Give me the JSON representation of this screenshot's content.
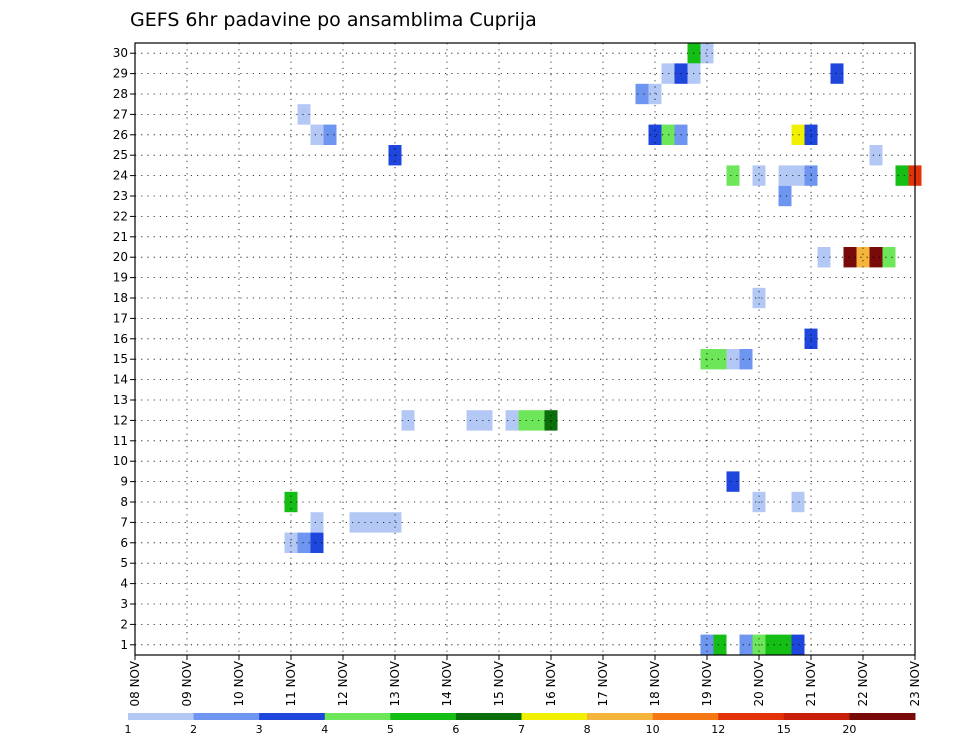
{
  "chart_data": {
    "type": "heatmap",
    "title": "GEFS 6hr padavine po ansamblima Cuprija",
    "xlabel": "",
    "ylabel": "",
    "x_tick_labels": [
      "08 NOV",
      "09 NOV",
      "10 NOV",
      "11 NOV",
      "12 NOV",
      "13 NOV",
      "14 NOV",
      "15 NOV",
      "16 NOV",
      "17 NOV",
      "18 NOV",
      "19 NOV",
      "20 NOV",
      "21 NOV",
      "22 NOV",
      "23 NOV"
    ],
    "y_tick_labels": [
      "1",
      "2",
      "3",
      "4",
      "5",
      "6",
      "7",
      "8",
      "9",
      "10",
      "11",
      "12",
      "13",
      "14",
      "15",
      "16",
      "17",
      "18",
      "19",
      "20",
      "21",
      "22",
      "23",
      "24",
      "25",
      "26",
      "27",
      "28",
      "29",
      "30"
    ],
    "xlim_days": [
      0,
      15
    ],
    "ylim": [
      0,
      30
    ],
    "time_step_days": 0.25,
    "grid": true,
    "colorbar": {
      "colors": [
        "#b4c8f5",
        "#6e96f0",
        "#1e46dc",
        "#6ee65a",
        "#14be14",
        "#0a6e0a",
        "#f0f000",
        "#f5b43c",
        "#f57814",
        "#e1320a",
        "#c81e0a",
        "#780a0a"
      ],
      "labels": [
        "1",
        "2",
        "3",
        "4",
        "5",
        "6",
        "7",
        "8",
        "10",
        "12",
        "15",
        "20"
      ]
    },
    "cells": [
      {
        "d": 10.75,
        "y": 30,
        "v": 5
      },
      {
        "d": 11.0,
        "y": 30,
        "v": 1
      },
      {
        "d": 10.25,
        "y": 29,
        "v": 1
      },
      {
        "d": 10.5,
        "y": 29,
        "v": 3
      },
      {
        "d": 10.75,
        "y": 29,
        "v": 1
      },
      {
        "d": 13.5,
        "y": 29,
        "v": 3
      },
      {
        "d": 9.75,
        "y": 28,
        "v": 2
      },
      {
        "d": 10.0,
        "y": 28,
        "v": 1
      },
      {
        "d": 3.25,
        "y": 27,
        "v": 1
      },
      {
        "d": 3.5,
        "y": 26,
        "v": 1
      },
      {
        "d": 3.75,
        "y": 26,
        "v": 2
      },
      {
        "d": 10.0,
        "y": 26,
        "v": 3
      },
      {
        "d": 10.25,
        "y": 26,
        "v": 4
      },
      {
        "d": 10.5,
        "y": 26,
        "v": 2
      },
      {
        "d": 12.75,
        "y": 26,
        "v": 7
      },
      {
        "d": 13.0,
        "y": 26,
        "v": 3
      },
      {
        "d": 5.0,
        "y": 25,
        "v": 3
      },
      {
        "d": 14.25,
        "y": 25,
        "v": 1
      },
      {
        "d": 11.5,
        "y": 24,
        "v": 4
      },
      {
        "d": 12.0,
        "y": 24,
        "v": 1
      },
      {
        "d": 12.5,
        "y": 24,
        "v": 1
      },
      {
        "d": 12.75,
        "y": 24,
        "v": 1
      },
      {
        "d": 13.0,
        "y": 24,
        "v": 2
      },
      {
        "d": 14.75,
        "y": 24,
        "v": 5
      },
      {
        "d": 15.0,
        "y": 24,
        "v": 10
      },
      {
        "d": 12.5,
        "y": 23,
        "v": 2
      },
      {
        "d": 13.25,
        "y": 20,
        "v": 1
      },
      {
        "d": 13.75,
        "y": 20,
        "v": 12
      },
      {
        "d": 14.0,
        "y": 20,
        "v": 8
      },
      {
        "d": 14.25,
        "y": 20,
        "v": 12
      },
      {
        "d": 14.5,
        "y": 20,
        "v": 4
      },
      {
        "d": 12.0,
        "y": 18,
        "v": 1
      },
      {
        "d": 13.0,
        "y": 16,
        "v": 3
      },
      {
        "d": 11.0,
        "y": 15,
        "v": 4
      },
      {
        "d": 11.25,
        "y": 15,
        "v": 4
      },
      {
        "d": 11.5,
        "y": 15,
        "v": 1
      },
      {
        "d": 11.75,
        "y": 15,
        "v": 2
      },
      {
        "d": 5.25,
        "y": 12,
        "v": 1
      },
      {
        "d": 6.5,
        "y": 12,
        "v": 1
      },
      {
        "d": 6.75,
        "y": 12,
        "v": 1
      },
      {
        "d": 7.25,
        "y": 12,
        "v": 1
      },
      {
        "d": 7.5,
        "y": 12,
        "v": 4
      },
      {
        "d": 7.75,
        "y": 12,
        "v": 4
      },
      {
        "d": 8.0,
        "y": 12,
        "v": 6
      },
      {
        "d": 11.5,
        "y": 9,
        "v": 3
      },
      {
        "d": 3.0,
        "y": 8,
        "v": 5
      },
      {
        "d": 12.0,
        "y": 8,
        "v": 1
      },
      {
        "d": 12.75,
        "y": 8,
        "v": 1
      },
      {
        "d": 3.5,
        "y": 7,
        "v": 1
      },
      {
        "d": 4.25,
        "y": 7,
        "v": 1
      },
      {
        "d": 4.5,
        "y": 7,
        "v": 1
      },
      {
        "d": 4.75,
        "y": 7,
        "v": 1
      },
      {
        "d": 5.0,
        "y": 7,
        "v": 1
      },
      {
        "d": 3.0,
        "y": 6,
        "v": 1
      },
      {
        "d": 3.25,
        "y": 6,
        "v": 2
      },
      {
        "d": 3.5,
        "y": 6,
        "v": 3
      },
      {
        "d": 11.0,
        "y": 1,
        "v": 2
      },
      {
        "d": 11.25,
        "y": 1,
        "v": 5
      },
      {
        "d": 11.75,
        "y": 1,
        "v": 2
      },
      {
        "d": 12.0,
        "y": 1,
        "v": 4
      },
      {
        "d": 12.25,
        "y": 1,
        "v": 5
      },
      {
        "d": 12.5,
        "y": 1,
        "v": 5
      },
      {
        "d": 12.75,
        "y": 1,
        "v": 3
      }
    ]
  }
}
